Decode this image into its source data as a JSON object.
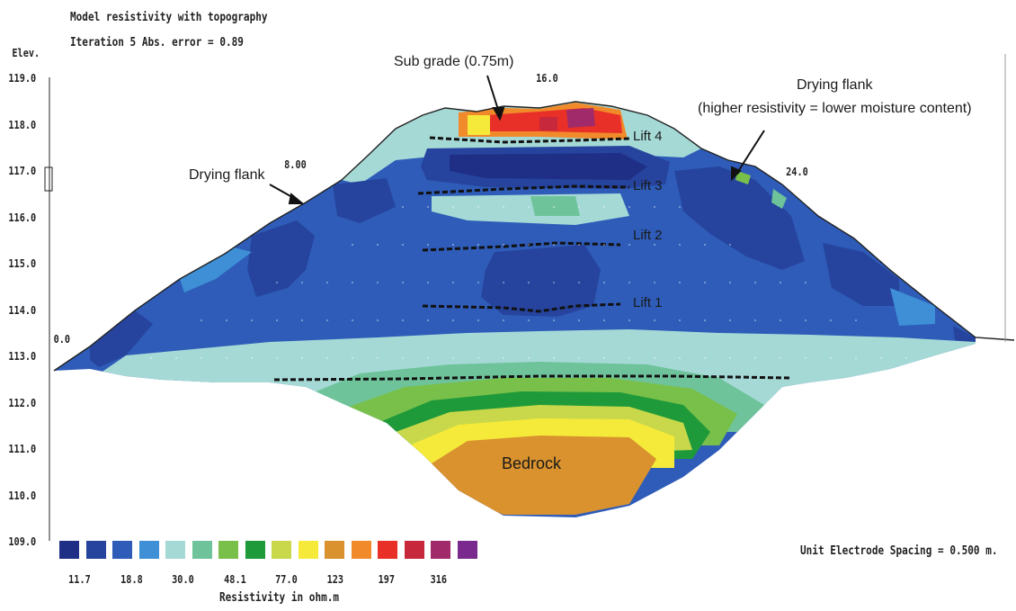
{
  "header": {
    "title": "Model resistivity with topography",
    "subtitle": "Iteration 5 Abs. error = 0.89"
  },
  "axis": {
    "ylabel": "Elev.",
    "y_ticks": [
      "119.0",
      "118.0",
      "117.0",
      "116.0",
      "115.0",
      "114.0",
      "113.0",
      "112.0",
      "111.0",
      "110.0",
      "109.0"
    ],
    "x_ticks": [
      "0.0",
      "8.00",
      "16.0",
      "24.0"
    ]
  },
  "annotations": {
    "subgrade": "Sub grade (0.75m)",
    "drying_left": "Drying flank",
    "drying_right_title": "Drying flank",
    "drying_right_note": "(higher resistivity = lower moisture content)",
    "bedrock": "Bedrock",
    "lift4": "Lift 4",
    "lift3": "Lift 3",
    "lift2": "Lift 2",
    "lift1": "Lift 1"
  },
  "legend": {
    "title": "Resistivity in ohm.m",
    "values": [
      "11.7",
      "18.8",
      "30.0",
      "48.1",
      "77.0",
      "123",
      "197",
      "316"
    ],
    "colors": [
      "#1f2f86",
      "#26449e",
      "#2e5cb8",
      "#3e8fd6",
      "#a5d9d6",
      "#6ec39a",
      "#79c04a",
      "#1f9a3a",
      "#c8d84a",
      "#f5ea3a",
      "#d9922e",
      "#f08a2a",
      "#e83028",
      "#c8283c",
      "#a02a6a",
      "#7a2a8e"
    ]
  },
  "spacing_note": "Unit Electrode Spacing = 0.500 m."
}
